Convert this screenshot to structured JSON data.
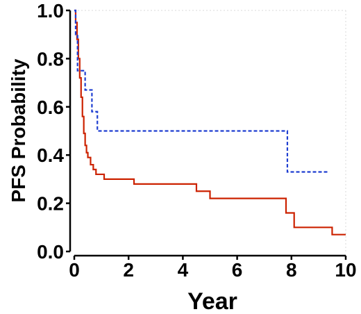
{
  "chart_data": {
    "type": "line",
    "subtype": "kaplan-meier step",
    "title": "",
    "xlabel": "Year",
    "ylabel": "PFS Probability",
    "xlim": [
      0,
      10
    ],
    "ylim": [
      0,
      1
    ],
    "x_ticks": [
      "0",
      "2",
      "4",
      "6",
      "8",
      "10"
    ],
    "y_ticks": [
      "0.0",
      "0.2",
      "0.4",
      "0.6",
      "0.8",
      "1.0"
    ],
    "grid": false,
    "legend": "none",
    "series": [
      {
        "color": "#cc2200",
        "line_style": "solid",
        "x": [
          0,
          0.05,
          0.1,
          0.15,
          0.2,
          0.25,
          0.3,
          0.35,
          0.4,
          0.45,
          0.5,
          0.6,
          0.7,
          0.8,
          1.1,
          1.9,
          2.2,
          4.5,
          5.0,
          7.8,
          8.1,
          9.5,
          10.0
        ],
        "y": [
          1.0,
          0.95,
          0.88,
          0.8,
          0.72,
          0.64,
          0.56,
          0.49,
          0.44,
          0.41,
          0.39,
          0.36,
          0.34,
          0.32,
          0.3,
          0.3,
          0.28,
          0.25,
          0.22,
          0.16,
          0.1,
          0.07,
          0.07
        ]
      },
      {
        "color": "#1f3fd1",
        "line_style": "dashed",
        "x": [
          0,
          0.05,
          0.12,
          0.4,
          0.65,
          0.85,
          7.8,
          7.85,
          9.4
        ],
        "y": [
          1.0,
          0.9,
          0.75,
          0.67,
          0.58,
          0.5,
          0.5,
          0.33,
          0.33
        ]
      }
    ]
  }
}
